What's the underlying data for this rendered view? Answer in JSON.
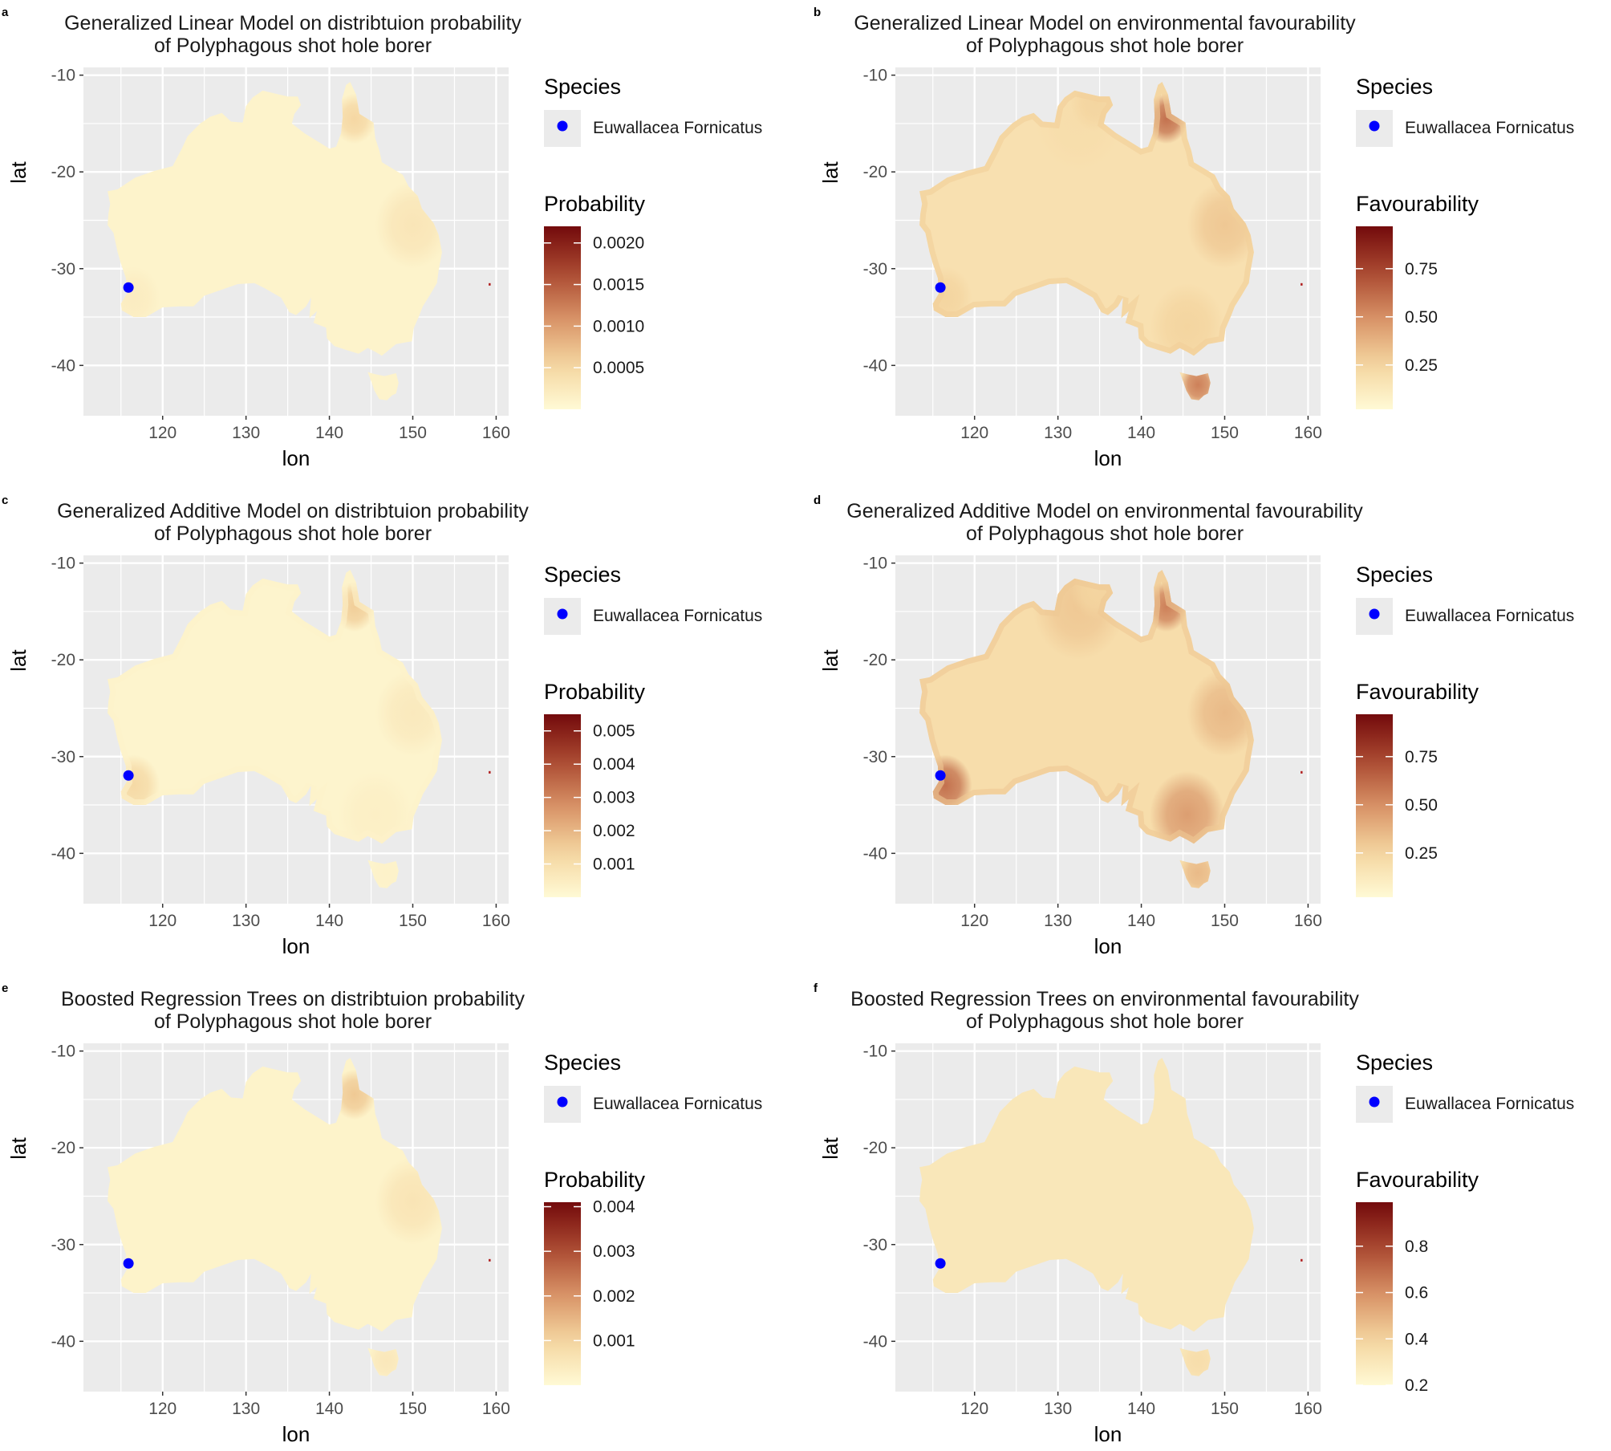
{
  "chart_data": [
    {
      "panel_letter": "a",
      "type": "heatmap",
      "title": "Generalized Linear Model on distribtuion probability",
      "subtitle": "of Polyphagous shot hole borer",
      "xlabel": "lon",
      "ylabel": "lat",
      "xticks": [
        "120",
        "130",
        "140",
        "150",
        "160"
      ],
      "yticks": [
        "-10",
        "-20",
        "-30",
        "-40"
      ],
      "xlim": [
        110.5,
        161.5
      ],
      "ylim": [
        -45.2,
        -9.2
      ],
      "points": [
        {
          "lon": 115.9,
          "lat": -31.95,
          "species": "Euwallacea Fornicatus"
        }
      ],
      "legend_species_title": "Species",
      "legend_species_label": "Euwallacea Fornicatus",
      "legend_fill_title": "Probability",
      "fill_ticks": [
        "0.0020",
        "0.0015",
        "0.0010",
        "0.0005"
      ],
      "fill_tick_values": [
        0.002,
        0.0015,
        0.001,
        0.0005
      ],
      "fill_range": [
        0,
        0.0022
      ],
      "surface": {
        "base": 0.0001,
        "coast": 0.0001,
        "north": 5e-05,
        "east": 0.0003,
        "southeast": 0.0,
        "southwest": 0.0002,
        "tasmania": 0.0001,
        "cape_york": 0.0005,
        "arnhem": 0.0
      }
    },
    {
      "panel_letter": "b",
      "type": "heatmap",
      "title": "Generalized Linear Model on environmental favourability",
      "subtitle": "of Polyphagous shot hole borer",
      "xlabel": "lon",
      "ylabel": "lat",
      "xticks": [
        "120",
        "130",
        "140",
        "150",
        "160"
      ],
      "yticks": [
        "-10",
        "-20",
        "-30",
        "-40"
      ],
      "xlim": [
        110.5,
        161.5
      ],
      "ylim": [
        -45.2,
        -9.2
      ],
      "points": [
        {
          "lon": 115.9,
          "lat": -31.95,
          "species": "Euwallacea Fornicatus"
        }
      ],
      "legend_species_title": "Species",
      "legend_species_label": "Euwallacea Fornicatus",
      "legend_fill_title": "Favourability",
      "fill_ticks": [
        "0.75",
        "0.50",
        "0.25"
      ],
      "fill_tick_values": [
        0.75,
        0.5,
        0.25
      ],
      "fill_range": [
        0.02,
        0.97
      ],
      "surface": {
        "base": 0.18,
        "coast": 0.28,
        "north": 0.2,
        "east": 0.3,
        "southeast": 0.25,
        "southwest": 0.25,
        "tasmania": 0.55,
        "cape_york": 0.6,
        "arnhem": 0.25
      }
    },
    {
      "panel_letter": "c",
      "type": "heatmap",
      "title": "Generalized Additive Model on distribtuion probability",
      "subtitle": "of Polyphagous shot hole borer",
      "xlabel": "lon",
      "ylabel": "lat",
      "xticks": [
        "120",
        "130",
        "140",
        "150",
        "160"
      ],
      "yticks": [
        "-10",
        "-20",
        "-30",
        "-40"
      ],
      "xlim": [
        110.5,
        161.5
      ],
      "ylim": [
        -45.2,
        -9.2
      ],
      "points": [
        {
          "lon": 115.9,
          "lat": -31.95,
          "species": "Euwallacea Fornicatus"
        }
      ],
      "legend_species_title": "Species",
      "legend_species_label": "Euwallacea Fornicatus",
      "legend_fill_title": "Probability",
      "fill_ticks": [
        "0.005",
        "0.004",
        "0.003",
        "0.002",
        "0.001"
      ],
      "fill_tick_values": [
        0.005,
        0.004,
        0.003,
        0.002,
        0.001
      ],
      "fill_range": [
        0,
        0.0055
      ],
      "surface": {
        "base": 0.0002,
        "coast": 0.0003,
        "north": 0.0001,
        "east": 0.0006,
        "southeast": 0.0004,
        "southwest": 0.0012,
        "tasmania": 0.0003,
        "cape_york": 0.0015,
        "arnhem": 0.0
      }
    },
    {
      "panel_letter": "d",
      "type": "heatmap",
      "title": "Generalized Additive Model on environmental favourability",
      "subtitle": "of Polyphagous shot hole borer",
      "xlabel": "lon",
      "ylabel": "lat",
      "xticks": [
        "120",
        "130",
        "140",
        "150",
        "160"
      ],
      "yticks": [
        "-10",
        "-20",
        "-30",
        "-40"
      ],
      "xlim": [
        110.5,
        161.5
      ],
      "ylim": [
        -45.2,
        -9.2
      ],
      "points": [
        {
          "lon": 115.9,
          "lat": -31.95,
          "species": "Euwallacea Fornicatus"
        }
      ],
      "legend_species_title": "Species",
      "legend_species_label": "Euwallacea Fornicatus",
      "legend_fill_title": "Favourability",
      "fill_ticks": [
        "0.75",
        "0.50",
        "0.25"
      ],
      "fill_tick_values": [
        0.75,
        0.5,
        0.25
      ],
      "fill_range": [
        0.02,
        0.97
      ],
      "surface": {
        "base": 0.2,
        "coast": 0.3,
        "north": 0.3,
        "east": 0.35,
        "southeast": 0.45,
        "southwest": 0.6,
        "tasmania": 0.35,
        "cape_york": 0.55,
        "arnhem": 0.25
      }
    },
    {
      "panel_letter": "e",
      "type": "heatmap",
      "title": "Boosted Regression Trees on distribtuion probability",
      "subtitle": "of Polyphagous shot hole borer",
      "xlabel": "lon",
      "ylabel": "lat",
      "xticks": [
        "120",
        "130",
        "140",
        "150",
        "160"
      ],
      "yticks": [
        "-10",
        "-20",
        "-30",
        "-40"
      ],
      "xlim": [
        110.5,
        161.5
      ],
      "ylim": [
        -45.2,
        -9.2
      ],
      "points": [
        {
          "lon": 115.9,
          "lat": -31.95,
          "species": "Euwallacea Fornicatus"
        }
      ],
      "legend_species_title": "Species",
      "legend_species_label": "Euwallacea Fornicatus",
      "legend_fill_title": "Probability",
      "fill_ticks": [
        "0.004",
        "0.003",
        "0.002",
        "0.001"
      ],
      "fill_tick_values": [
        0.004,
        0.003,
        0.002,
        0.001
      ],
      "fill_range": [
        0,
        0.0041
      ],
      "surface": {
        "base": 0.0002,
        "coast": 0.0002,
        "north": 0.0001,
        "east": 0.0006,
        "southeast": 0.0002,
        "southwest": 0.0001,
        "tasmania": 0.0005,
        "cape_york": 0.0012,
        "arnhem": 0.0
      }
    },
    {
      "panel_letter": "f",
      "type": "heatmap",
      "title": "Boosted Regression Trees on environmental favourability",
      "subtitle": "of Polyphagous shot hole borer",
      "xlabel": "lon",
      "ylabel": "lat",
      "xticks": [
        "120",
        "130",
        "140",
        "150",
        "160"
      ],
      "yticks": [
        "-10",
        "-20",
        "-30",
        "-40"
      ],
      "xlim": [
        110.5,
        161.5
      ],
      "ylim": [
        -45.2,
        -9.2
      ],
      "points": [
        {
          "lon": 115.9,
          "lat": -31.95,
          "species": "Euwallacea Fornicatus"
        }
      ],
      "legend_species_title": "Species",
      "legend_species_label": "Euwallacea Fornicatus",
      "legend_fill_title": "Favourability",
      "fill_ticks": [
        "0.8",
        "0.6",
        "0.4",
        "0.2"
      ],
      "fill_tick_values": [
        0.8,
        0.6,
        0.4,
        0.2
      ],
      "fill_range": [
        0.2,
        0.99
      ],
      "surface": {
        "base": 0.3,
        "coast": 0.1,
        "north": 0.13,
        "east": 0.12,
        "southeast": 0.05,
        "southwest": 0.1,
        "tasmania": 0.35,
        "cape_york": 0.3,
        "arnhem": 0.1
      }
    }
  ]
}
